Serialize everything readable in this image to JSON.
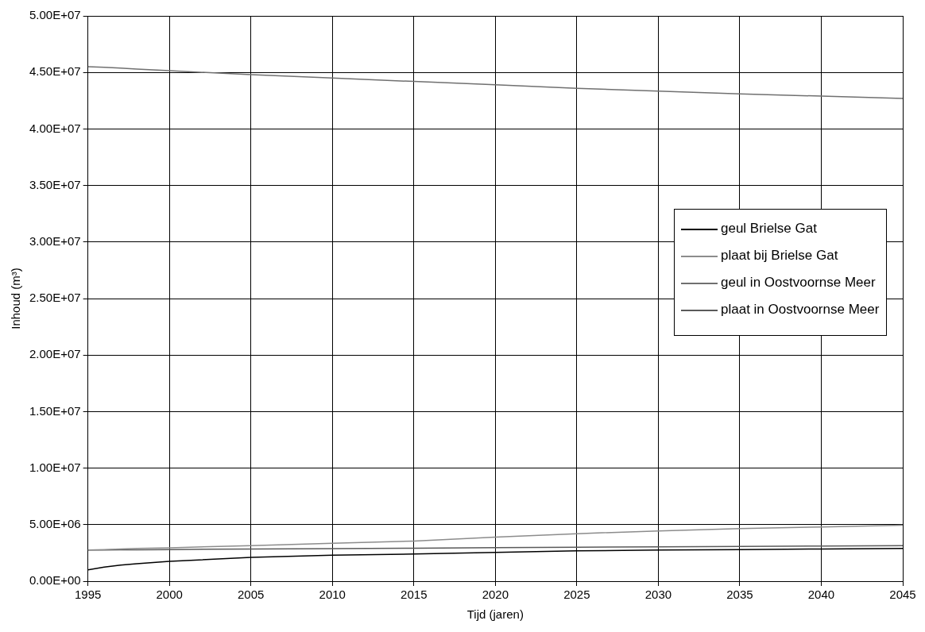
{
  "chart_data": {
    "type": "line",
    "xlabel": "Tijd (jaren)",
    "ylabel": "Inhoud (m³)",
    "x": [
      1995,
      1996,
      1997,
      1998,
      2000,
      2005,
      2010,
      2015,
      2020,
      2025,
      2030,
      2035,
      2040,
      2045
    ],
    "series": [
      {
        "name": "geul Brielse Gat",
        "color": "#000000",
        "values": [
          1000000,
          1250000,
          1420000,
          1550000,
          1750000,
          2100000,
          2300000,
          2400000,
          2550000,
          2680000,
          2750000,
          2800000,
          2850000,
          2900000
        ]
      },
      {
        "name": "plaat bij Brielse Gat",
        "color": "#8c8c8c",
        "values": [
          2750000,
          2800000,
          2850000,
          2900000,
          2950000,
          3150000,
          3350000,
          3550000,
          3900000,
          4200000,
          4450000,
          4650000,
          4800000,
          4950000
        ]
      },
      {
        "name": "geul in Oostvoornse Meer",
        "color": "#707070",
        "values": [
          45500000,
          45450000,
          45380000,
          45300000,
          45150000,
          44800000,
          44500000,
          44200000,
          43900000,
          43600000,
          43350000,
          43100000,
          42900000,
          42700000
        ]
      },
      {
        "name": "plaat in Oostvoornse Meer",
        "color": "#5a5a5a",
        "values": [
          2750000,
          2760000,
          2770000,
          2780000,
          2800000,
          2850000,
          2880000,
          2920000,
          2960000,
          3000000,
          3040000,
          3070000,
          3110000,
          3150000
        ]
      }
    ],
    "xlim": [
      1995,
      2045
    ],
    "xticks": [
      1995,
      2000,
      2005,
      2010,
      2015,
      2020,
      2025,
      2030,
      2035,
      2040,
      2045
    ],
    "ylim": [
      0,
      50000000
    ],
    "yticks": [
      {
        "value": 0,
        "label": "0.00E+00"
      },
      {
        "value": 5000000,
        "label": "5.00E+06"
      },
      {
        "value": 10000000,
        "label": "1.00E+07"
      },
      {
        "value": 15000000,
        "label": "1.50E+07"
      },
      {
        "value": 20000000,
        "label": "2.00E+07"
      },
      {
        "value": 25000000,
        "label": "2.50E+07"
      },
      {
        "value": 30000000,
        "label": "3.00E+07"
      },
      {
        "value": 35000000,
        "label": "3.50E+07"
      },
      {
        "value": 40000000,
        "label": "4.00E+07"
      },
      {
        "value": 45000000,
        "label": "4.50E+07"
      },
      {
        "value": 50000000,
        "label": "5.00E+07"
      }
    ],
    "grid": true,
    "legend": "right",
    "marker": "none",
    "line_style": "solid"
  }
}
